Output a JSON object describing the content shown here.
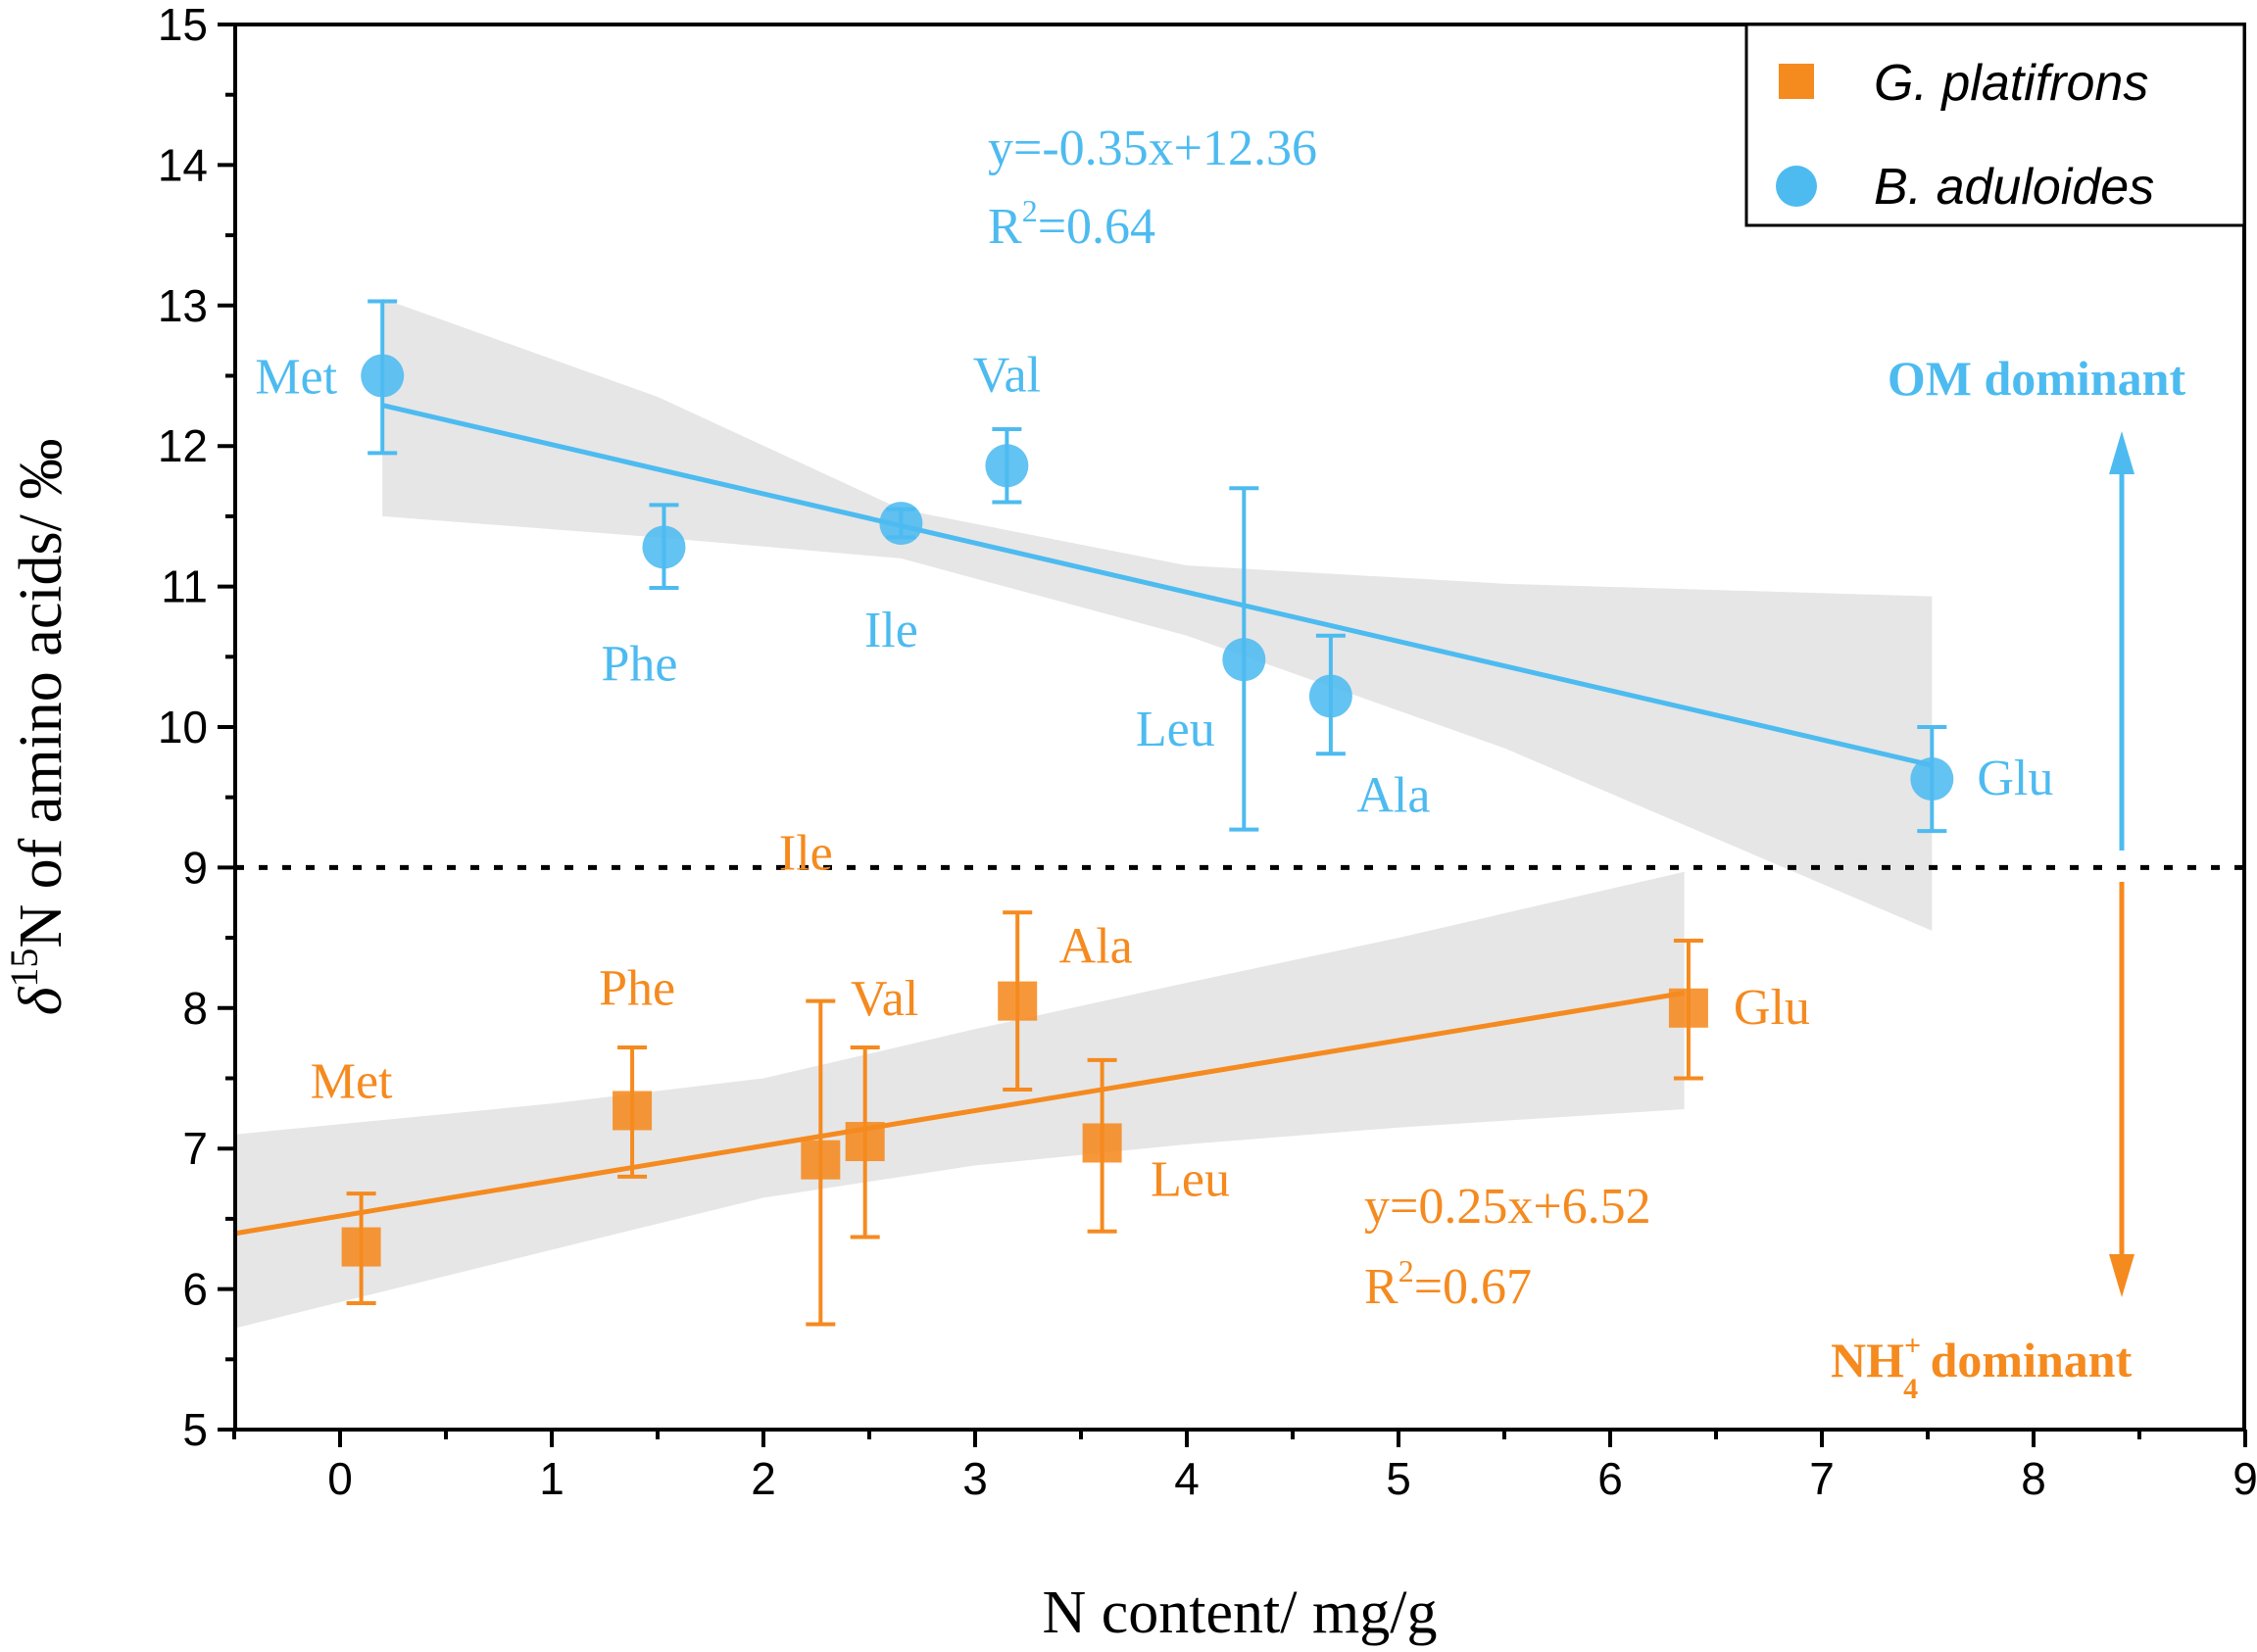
{
  "chart_data": {
    "type": "scatter",
    "xlabel": "N content/ mg/g",
    "ylabel_prefix": "δ",
    "ylabel_sup": "15",
    "ylabel_rest": "N of amino acids/ ‰",
    "xlim": [
      -0.5,
      9
    ],
    "ylim": [
      5,
      15
    ],
    "xticks": [
      "0",
      "1",
      "2",
      "3",
      "4",
      "5",
      "6",
      "7",
      "8",
      "9"
    ],
    "yticks": [
      "5",
      "6",
      "7",
      "8",
      "9",
      "10",
      "11",
      "12",
      "13",
      "14",
      "15"
    ],
    "threshold": 9,
    "colors": {
      "blue": "#4dbbf0",
      "orange": "#f58a1f",
      "band": "#e6e6e6"
    },
    "series": [
      {
        "name": "G. platifrons",
        "marker": "square",
        "color": "#f58a1f",
        "points": [
          {
            "label": "Met",
            "x": 0.1,
            "y": 6.3,
            "err_low": 5.9,
            "err_high": 6.68
          },
          {
            "label": "Phe",
            "x": 1.38,
            "y": 7.27,
            "err_low": 6.8,
            "err_high": 7.72
          },
          {
            "label": "Ile",
            "x": 2.27,
            "y": 6.92,
            "err_low": 5.75,
            "err_high": 8.05
          },
          {
            "label": "Val",
            "x": 2.48,
            "y": 7.05,
            "err_low": 6.37,
            "err_high": 7.72
          },
          {
            "label": "Ala",
            "x": 3.2,
            "y": 8.05,
            "err_low": 7.42,
            "err_high": 8.68
          },
          {
            "label": "Leu",
            "x": 3.6,
            "y": 7.04,
            "err_low": 6.41,
            "err_high": 7.63
          },
          {
            "label": "Glu",
            "x": 6.37,
            "y": 8.0,
            "err_low": 7.5,
            "err_high": 8.48
          }
        ],
        "fit": {
          "x_start": -0.5,
          "x_end": 6.35,
          "slope": 0.25,
          "intercept": 6.52,
          "band_upper": [
            [
              -0.5,
              7.1
            ],
            [
              1,
              7.32
            ],
            [
              2,
              7.5
            ],
            [
              3,
              7.85
            ],
            [
              4,
              8.18
            ],
            [
              5,
              8.5
            ],
            [
              6.35,
              8.97
            ]
          ],
          "band_lower": [
            [
              -0.5,
              5.72
            ],
            [
              1,
              6.28
            ],
            [
              2,
              6.65
            ],
            [
              3,
              6.88
            ],
            [
              4,
              7.03
            ],
            [
              5,
              7.15
            ],
            [
              6.35,
              7.28
            ]
          ]
        },
        "equation": "y=0.25x+6.52",
        "r2_prefix": "R",
        "r2_sup": "2",
        "r2_value": "=0.67"
      },
      {
        "name": "B. aduloides",
        "marker": "circle",
        "color": "#4dbbf0",
        "points": [
          {
            "label": "Met",
            "x": 0.2,
            "y": 12.5,
            "err_low": 11.95,
            "err_high": 13.03
          },
          {
            "label": "Phe",
            "x": 1.53,
            "y": 11.28,
            "err_low": 10.99,
            "err_high": 11.58
          },
          {
            "label": "Ile",
            "x": 2.65,
            "y": 11.45,
            "err_low": 11.35,
            "err_high": 11.55
          },
          {
            "label": "Val",
            "x": 3.15,
            "y": 11.86,
            "err_low": 11.6,
            "err_high": 12.12
          },
          {
            "label": "Leu",
            "x": 4.27,
            "y": 10.48,
            "err_low": 9.27,
            "err_high": 11.7
          },
          {
            "label": "Ala",
            "x": 4.68,
            "y": 10.22,
            "err_low": 9.81,
            "err_high": 10.65
          },
          {
            "label": "Glu",
            "x": 7.52,
            "y": 9.63,
            "err_low": 9.26,
            "err_high": 10.0
          }
        ],
        "fit": {
          "x_start": 0.2,
          "x_end": 7.52,
          "slope": -0.35,
          "intercept": 12.36,
          "band_upper": [
            [
              0.2,
              13.05
            ],
            [
              1.5,
              12.35
            ],
            [
              2.65,
              11.55
            ],
            [
              4,
              11.15
            ],
            [
              5.5,
              11.02
            ],
            [
              7.52,
              10.93
            ]
          ],
          "band_lower": [
            [
              0.2,
              11.5
            ],
            [
              1.5,
              11.35
            ],
            [
              2.65,
              11.2
            ],
            [
              4,
              10.65
            ],
            [
              5.5,
              9.85
            ],
            [
              7.52,
              8.55
            ]
          ]
        },
        "equation": "y=-0.35x+12.36",
        "r2_prefix": "R",
        "r2_sup": "2",
        "r2_value": "=0.64"
      }
    ],
    "legend": {
      "position": "top-right",
      "entries": [
        "G. platifrons",
        "B. aduloides"
      ]
    },
    "annotations": {
      "om": "OM dominant",
      "nh_prefix": "NH",
      "nh_sup": "+",
      "nh_sub": "4",
      "nh_rest": " dominant"
    }
  }
}
